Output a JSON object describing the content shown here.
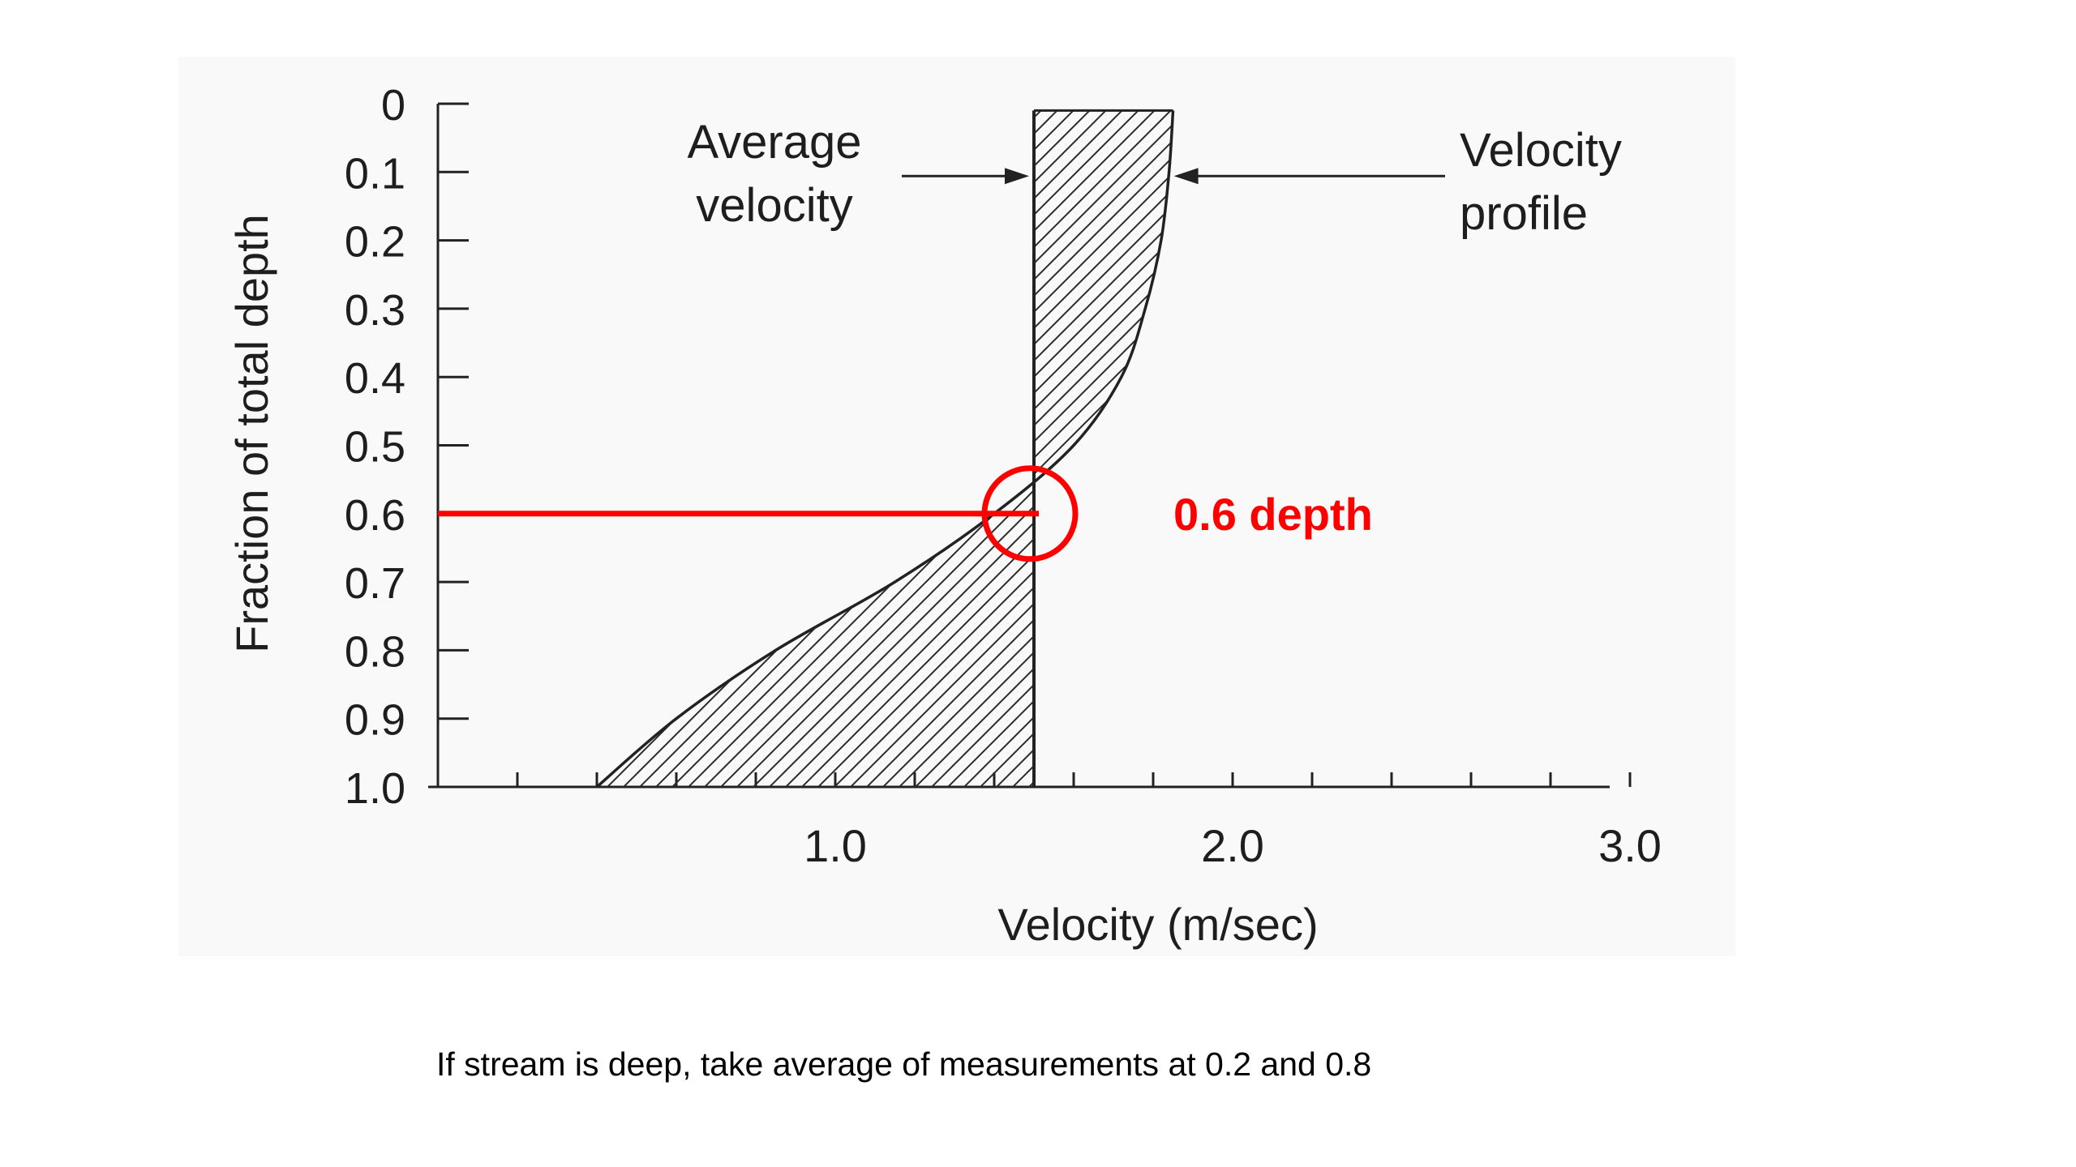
{
  "chart_data": {
    "type": "area",
    "ylabel": "Fraction of total depth",
    "xlabel": "Velocity (m/sec)",
    "y_ticks": [
      "0",
      "0.1",
      "0.2",
      "0.3",
      "0.4",
      "0.5",
      "0.6",
      "0.7",
      "0.8",
      "0.9",
      "1.0"
    ],
    "x_tick_labels": [
      {
        "value": 1.0,
        "label": "1.0"
      },
      {
        "value": 2.0,
        "label": "2.0"
      },
      {
        "value": 3.0,
        "label": "3.0"
      }
    ],
    "x_minor_ticks": [
      0.2,
      0.4,
      0.6,
      0.8,
      1.0,
      1.2,
      1.4,
      1.6,
      1.8,
      2.0,
      2.2,
      2.4,
      2.6,
      2.8,
      3.0
    ],
    "xlim": [
      0,
      3.0
    ],
    "ylim": [
      0,
      1.0
    ],
    "y_inverted": true,
    "series": [
      {
        "name": "Velocity profile",
        "x": [
          1.85,
          1.84,
          1.82,
          1.78,
          1.72,
          1.6,
          1.4,
          1.15,
          0.85,
          0.6,
          0.4
        ],
        "y": [
          0.01,
          0.1,
          0.2,
          0.3,
          0.4,
          0.5,
          0.6,
          0.7,
          0.8,
          0.9,
          1.0
        ]
      }
    ],
    "average_velocity": 1.5,
    "annotations": [
      {
        "text_lines": [
          "Average",
          "velocity"
        ],
        "points_to": "average_velocity"
      },
      {
        "text_lines": [
          "Velocity",
          "profile"
        ],
        "points_to": "profile"
      },
      {
        "text": "0.6 depth",
        "depth": 0.6,
        "color": "#ff0000"
      }
    ],
    "grid": false
  },
  "caption": "If stream is deep, take average of measurements at 0.2 and 0.8"
}
